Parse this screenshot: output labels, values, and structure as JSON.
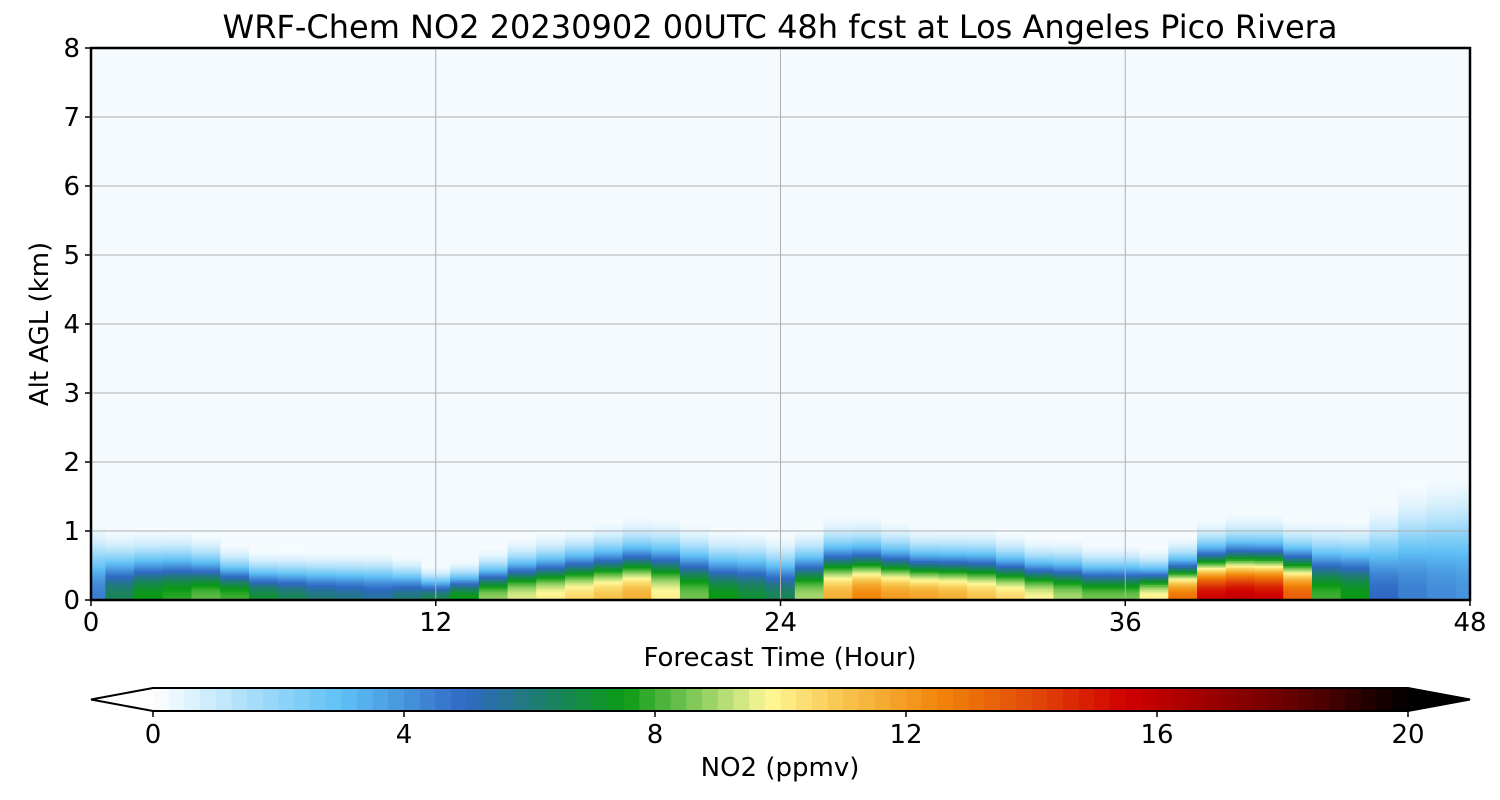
{
  "chart_data": {
    "type": "heatmap",
    "title": "WRF-Chem NO2  20230902 00UTC 48h fcst at Los Angeles Pico Rivera",
    "xlabel": "Forecast Time (Hour)",
    "ylabel": "Alt AGL (km)",
    "xlim": [
      0,
      48
    ],
    "ylim": [
      0,
      8
    ],
    "xticks": [
      "0",
      "12",
      "24",
      "36",
      "48"
    ],
    "yticks": [
      "0",
      "1",
      "2",
      "3",
      "4",
      "5",
      "6",
      "7",
      "8"
    ],
    "grid": true,
    "field": "NO2 mixing ratio vs forecast hour and altitude",
    "profile_hours": [
      0,
      1,
      2,
      3,
      4,
      5,
      6,
      7,
      8,
      9,
      10,
      11,
      12,
      13,
      14,
      15,
      16,
      17,
      18,
      19,
      20,
      21,
      22,
      23,
      24,
      25,
      26,
      27,
      28,
      29,
      30,
      31,
      32,
      33,
      34,
      35,
      36,
      37,
      38,
      39,
      40,
      41,
      42,
      43,
      44,
      45,
      46,
      47,
      48
    ],
    "surface_no2": [
      4.5,
      6.5,
      7.5,
      7.8,
      8.3,
      8.0,
      7.0,
      6.5,
      6.0,
      5.8,
      5.5,
      6.0,
      6.5,
      7.5,
      8.8,
      9.5,
      10.0,
      10.5,
      11.0,
      11.5,
      10.0,
      8.5,
      7.5,
      7.0,
      6.5,
      9.0,
      11.5,
      12.5,
      12.0,
      11.8,
      11.5,
      11.0,
      10.5,
      9.8,
      9.0,
      8.5,
      8.5,
      10.0,
      13.0,
      15.5,
      15.8,
      15.5,
      13.5,
      8.0,
      7.5,
      5.0,
      4.5,
      4.2,
      4.0
    ],
    "boundary_layer_top_km": [
      0.8,
      0.7,
      0.7,
      0.7,
      0.65,
      0.55,
      0.5,
      0.5,
      0.5,
      0.5,
      0.5,
      0.45,
      0.35,
      0.4,
      0.5,
      0.6,
      0.65,
      0.7,
      0.75,
      0.8,
      0.8,
      0.75,
      0.7,
      0.7,
      0.65,
      0.7,
      0.8,
      0.8,
      0.75,
      0.7,
      0.7,
      0.7,
      0.65,
      0.6,
      0.6,
      0.55,
      0.55,
      0.5,
      0.6,
      0.75,
      0.8,
      0.8,
      0.75,
      0.8,
      0.8,
      1.0,
      1.2,
      1.3,
      1.35
    ],
    "colorbar": {
      "label": "NO2  (ppmv)",
      "min": 0,
      "max": 20,
      "ticks": [
        "0",
        "4",
        "8",
        "12",
        "16",
        "20"
      ],
      "extend": "both",
      "levels": 80,
      "stops": [
        [
          0.0,
          "#ffffff"
        ],
        [
          2.0,
          "#90d4f8"
        ],
        [
          3.0,
          "#5fc0f5"
        ],
        [
          5.0,
          "#2f69c4"
        ],
        [
          6.0,
          "#207a7a"
        ],
        [
          7.5,
          "#0a9a14"
        ],
        [
          9.0,
          "#a8d870"
        ],
        [
          9.8,
          "#fff898"
        ],
        [
          11.0,
          "#f7c44c"
        ],
        [
          12.5,
          "#f2860a"
        ],
        [
          14.0,
          "#e24a08"
        ],
        [
          15.5,
          "#d10000"
        ],
        [
          18.0,
          "#6e0000"
        ],
        [
          20.0,
          "#000000"
        ]
      ],
      "over_color": "#000000",
      "under_color": "#ffffff"
    },
    "background_color": "#f5fafe"
  }
}
